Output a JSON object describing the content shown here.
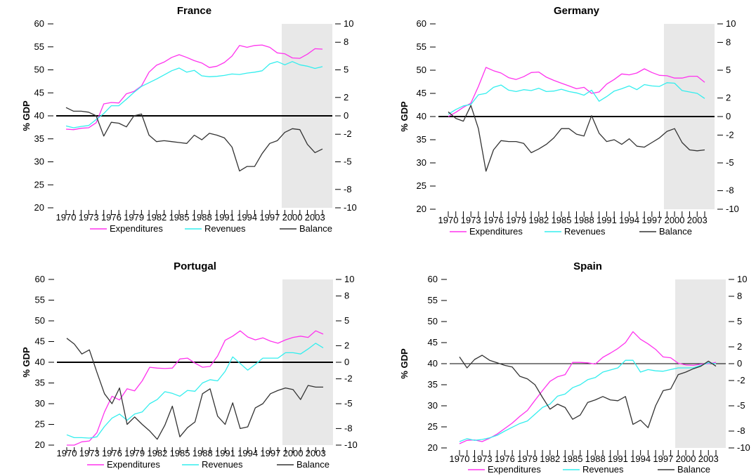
{
  "colors": {
    "expenditures": "#ff33ee",
    "revenues": "#33eeee",
    "balance": "#333333",
    "shade": "#e8e8e8"
  },
  "legend": {
    "expenditures": "Expenditures",
    "revenues": "Revenues",
    "balance": "Balance"
  },
  "chart_data": [
    {
      "type": "line",
      "title": "France",
      "ylabel": "% GDP",
      "ylim": [
        20,
        60
      ],
      "y_ticks": [
        "20",
        "25",
        "30",
        "35",
        "40",
        "45",
        "50",
        "55",
        "60"
      ],
      "y2lim": [
        -10,
        10
      ],
      "y2_ticks": [
        "-10",
        "-8",
        "-5",
        "-2",
        "0",
        "2",
        "5",
        "8",
        "10"
      ],
      "x_ticks": [
        "1970",
        "1973",
        "1976",
        "1979",
        "1982",
        "1985",
        "1988",
        "1991",
        "1994",
        "1997",
        "2000",
        "2003"
      ],
      "x": [
        1970,
        1971,
        1972,
        1973,
        1974,
        1975,
        1976,
        1977,
        1978,
        1979,
        1980,
        1981,
        1982,
        1983,
        1984,
        1985,
        1986,
        1987,
        1988,
        1989,
        1990,
        1991,
        1992,
        1993,
        1994,
        1995,
        1996,
        1997,
        1998,
        1999,
        2000,
        2001,
        2002,
        2003,
        2004
      ],
      "shade": [
        1999,
        2004
      ],
      "series": [
        {
          "name": "Expenditures",
          "axis": "left",
          "values": [
            37.1,
            37.0,
            37.3,
            37.4,
            38.5,
            42.6,
            42.9,
            42.8,
            44.8,
            45.3,
            46.5,
            49.5,
            51.0,
            51.7,
            52.7,
            53.3,
            52.7,
            52.0,
            51.5,
            50.5,
            50.8,
            51.6,
            53.0,
            55.3,
            54.9,
            55.3,
            55.4,
            54.9,
            53.7,
            53.5,
            52.6,
            52.5,
            53.4,
            54.6,
            54.5
          ]
        },
        {
          "name": "Revenues",
          "axis": "left",
          "values": [
            37.8,
            37.4,
            37.7,
            37.9,
            39.2,
            40.5,
            42.2,
            42.2,
            43.6,
            45.1,
            46.4,
            47.2,
            48.0,
            48.9,
            49.8,
            50.4,
            49.5,
            49.9,
            48.7,
            48.5,
            48.6,
            48.8,
            49.1,
            49.0,
            49.3,
            49.5,
            49.8,
            51.3,
            51.8,
            51.1,
            51.8,
            51.1,
            50.8,
            50.3,
            50.7
          ]
        },
        {
          "name": "Balance",
          "axis": "right",
          "values": [
            0.9,
            0.5,
            0.5,
            0.4,
            0.0,
            -2.2,
            -0.7,
            -0.8,
            -1.2,
            0.0,
            0.2,
            -2.1,
            -2.8,
            -2.7,
            -2.8,
            -2.9,
            -3.0,
            -2.1,
            -2.6,
            -1.9,
            -2.1,
            -2.4,
            -3.4,
            -6.0,
            -5.5,
            -5.5,
            -4.1,
            -3.0,
            -2.7,
            -1.8,
            -1.4,
            -1.5,
            -3.1,
            -4.0,
            -3.6
          ]
        }
      ]
    },
    {
      "type": "line",
      "title": "Germany",
      "ylabel": "% GDP",
      "ylim": [
        20,
        60
      ],
      "y_ticks": [
        "20",
        "25",
        "30",
        "35",
        "40",
        "45",
        "50",
        "55",
        "60"
      ],
      "y2lim": [
        -10,
        10
      ],
      "y2_ticks": [
        "-10",
        "-8",
        "-5",
        "-2",
        "0",
        "2",
        "5",
        "8",
        "10"
      ],
      "x_ticks": [
        "1970",
        "1973",
        "1976",
        "1979",
        "1982",
        "1985",
        "1988",
        "1991",
        "1994",
        "1997",
        "2000",
        "2003"
      ],
      "x": [
        1970,
        1971,
        1972,
        1973,
        1974,
        1975,
        1976,
        1977,
        1978,
        1979,
        1980,
        1981,
        1982,
        1983,
        1984,
        1985,
        1986,
        1987,
        1988,
        1989,
        1990,
        1991,
        1992,
        1993,
        1994,
        1995,
        1996,
        1997,
        1998,
        1999,
        2000,
        2001,
        2002,
        2003,
        2004
      ],
      "shade": [
        1999,
        2004
      ],
      "series": [
        {
          "name": "Expenditures",
          "axis": "left",
          "values": [
            40.0,
            40.9,
            42.0,
            42.9,
            46.5,
            50.6,
            49.9,
            49.4,
            48.4,
            48.0,
            48.6,
            49.5,
            49.6,
            48.5,
            47.8,
            47.2,
            46.6,
            46.0,
            46.3,
            45.0,
            45.3,
            47.0,
            48.0,
            49.2,
            49.0,
            49.4,
            50.3,
            49.5,
            48.9,
            48.8,
            48.3,
            48.3,
            48.7,
            48.7,
            47.4
          ]
        },
        {
          "name": "Revenues",
          "axis": "left",
          "values": [
            40.5,
            41.5,
            42.3,
            42.6,
            44.7,
            45.0,
            46.3,
            46.8,
            45.7,
            45.4,
            45.8,
            45.6,
            46.1,
            45.4,
            45.5,
            45.9,
            45.4,
            45.1,
            44.6,
            45.7,
            43.3,
            44.3,
            45.5,
            46.0,
            46.6,
            45.8,
            46.9,
            46.6,
            46.5,
            47.3,
            47.2,
            45.6,
            45.3,
            45.0,
            43.9
          ]
        },
        {
          "name": "Balance",
          "axis": "right",
          "values": [
            0.5,
            -0.2,
            -0.5,
            1.2,
            -1.3,
            -5.9,
            -3.6,
            -2.6,
            -2.7,
            -2.7,
            -2.9,
            -3.9,
            -3.5,
            -3.0,
            -2.3,
            -1.3,
            -1.3,
            -1.9,
            -2.1,
            0.1,
            -1.8,
            -2.7,
            -2.5,
            -3.0,
            -2.4,
            -3.2,
            -3.3,
            -2.8,
            -2.3,
            -1.6,
            -1.3,
            -2.8,
            -3.6,
            -3.7,
            -3.6
          ]
        }
      ]
    },
    {
      "type": "line",
      "title": "Portugal",
      "ylabel": "% GDP",
      "ylim": [
        20,
        60
      ],
      "y_ticks": [
        "20",
        "25",
        "30",
        "35",
        "40",
        "45",
        "50",
        "55",
        "60"
      ],
      "y2lim": [
        -10,
        10
      ],
      "y2_ticks": [
        "-10",
        "-8",
        "-5",
        "-2",
        "0",
        "2",
        "5",
        "8",
        "10"
      ],
      "x_ticks": [
        "1970",
        "1973",
        "1976",
        "1979",
        "1982",
        "1985",
        "1988",
        "1991",
        "1994",
        "1997",
        "2000",
        "2003"
      ],
      "x": [
        1970,
        1971,
        1972,
        1973,
        1974,
        1975,
        1976,
        1977,
        1978,
        1979,
        1980,
        1981,
        1982,
        1983,
        1984,
        1985,
        1986,
        1987,
        1988,
        1989,
        1990,
        1991,
        1992,
        1993,
        1994,
        1995,
        1996,
        1997,
        1998,
        1999,
        2000,
        2001,
        2002,
        2003,
        2004
      ],
      "shade": [
        1999,
        2004
      ],
      "series": [
        {
          "name": "Expenditures",
          "axis": "left",
          "values": [
            20.0,
            20.0,
            20.8,
            21.0,
            23.0,
            28.0,
            31.8,
            30.9,
            33.6,
            33.1,
            35.5,
            38.8,
            38.6,
            38.5,
            38.6,
            40.8,
            41.0,
            39.8,
            38.8,
            39.0,
            41.5,
            45.3,
            46.3,
            47.6,
            46.1,
            45.4,
            45.9,
            45.1,
            44.6,
            45.4,
            46.0,
            46.3,
            46.0,
            47.6,
            46.8
          ]
        },
        {
          "name": "Revenues",
          "axis": "left",
          "values": [
            22.5,
            21.8,
            21.8,
            21.7,
            22.0,
            24.5,
            26.5,
            27.5,
            26.0,
            27.5,
            28.0,
            30.0,
            31.0,
            32.9,
            32.5,
            31.8,
            33.2,
            33.0,
            35.0,
            35.8,
            35.5,
            37.8,
            41.3,
            39.7,
            38.1,
            39.5,
            41.0,
            41.0,
            41.0,
            42.3,
            42.3,
            42.0,
            43.2,
            44.6,
            43.5
          ]
        },
        {
          "name": "Balance",
          "axis": "right",
          "values": [
            2.9,
            2.2,
            1.0,
            1.5,
            -1.2,
            -3.8,
            -5.0,
            -3.1,
            -7.5,
            -6.6,
            -7.5,
            -8.3,
            -9.3,
            -7.6,
            -5.3,
            -9.0,
            -7.9,
            -7.2,
            -3.8,
            -3.2,
            -6.5,
            -7.5,
            -4.9,
            -8.0,
            -7.8,
            -5.5,
            -5.0,
            -3.8,
            -3.4,
            -3.1,
            -3.3,
            -4.5,
            -2.8,
            -3.0,
            -3.0
          ]
        }
      ]
    },
    {
      "type": "line",
      "title": "Spain",
      "ylabel": "% GDP",
      "ylim": [
        20,
        60
      ],
      "y_ticks": [
        "20",
        "25",
        "30",
        "35",
        "40",
        "45",
        "50",
        "55",
        "60"
      ],
      "y2lim": [
        -10,
        10
      ],
      "y2_ticks": [
        "-10",
        "-8",
        "-5",
        "-2",
        "0",
        "2",
        "5",
        "8",
        "10"
      ],
      "x_ticks": [
        "1970",
        "1973",
        "1976",
        "1979",
        "1982",
        "1985",
        "1988",
        "1991",
        "1994",
        "1997",
        "2000",
        "2003"
      ],
      "x": [
        1970,
        1971,
        1972,
        1973,
        1974,
        1975,
        1976,
        1977,
        1978,
        1979,
        1980,
        1981,
        1982,
        1983,
        1984,
        1985,
        1986,
        1987,
        1988,
        1989,
        1990,
        1991,
        1992,
        1993,
        1994,
        1995,
        1996,
        1997,
        1998,
        1999,
        2000,
        2001,
        2002,
        2003,
        2004
      ],
      "shade": [
        1999,
        2004
      ],
      "series": [
        {
          "name": "Expenditures",
          "axis": "left",
          "values": [
            21.0,
            21.8,
            21.9,
            21.5,
            22.3,
            23.3,
            24.6,
            25.9,
            27.5,
            28.9,
            31.3,
            33.6,
            35.8,
            36.9,
            37.4,
            40.3,
            40.3,
            40.2,
            39.9,
            41.5,
            42.5,
            43.6,
            45.0,
            47.6,
            45.8,
            44.7,
            43.4,
            41.6,
            41.4,
            40.1,
            39.7,
            39.6,
            39.9,
            40.0,
            40.3
          ]
        },
        {
          "name": "Revenues",
          "axis": "left",
          "values": [
            21.5,
            22.2,
            21.8,
            22.0,
            22.4,
            23.0,
            24.0,
            24.9,
            25.8,
            26.4,
            28.0,
            29.6,
            30.4,
            32.3,
            32.8,
            34.3,
            35.0,
            36.2,
            36.7,
            38.0,
            38.5,
            39.0,
            40.8,
            40.8,
            38.0,
            38.6,
            38.3,
            38.2,
            38.6,
            39.0,
            39.0,
            39.0,
            39.6,
            40.2,
            40.0
          ]
        },
        {
          "name": "Balance",
          "axis": "right",
          "values": [
            0.8,
            -0.5,
            0.5,
            1.0,
            0.4,
            0.1,
            -0.2,
            -0.4,
            -1.5,
            -1.8,
            -2.5,
            -4.0,
            -5.4,
            -4.8,
            -5.2,
            -6.6,
            -6.1,
            -4.6,
            -4.3,
            -3.9,
            -4.3,
            -4.4,
            -3.9,
            -7.2,
            -6.7,
            -7.6,
            -5.0,
            -3.2,
            -3.0,
            -1.3,
            -1.0,
            -0.6,
            -0.3,
            0.3,
            -0.3
          ]
        }
      ]
    }
  ]
}
